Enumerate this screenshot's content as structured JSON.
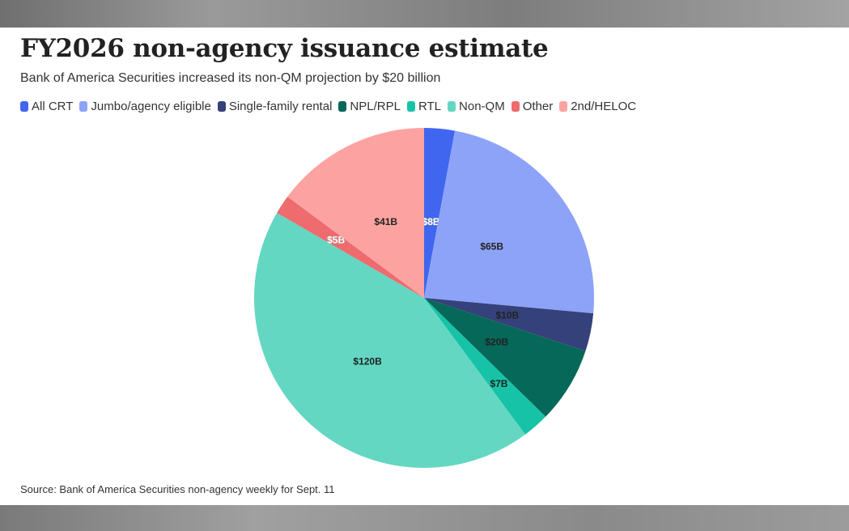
{
  "chart_data": {
    "type": "pie",
    "title": "FY2026 non-agency issuance estimate",
    "subtitle": "Bank of America Securities increased its non-QM projection by $20 billion",
    "source": "Source: Bank of America Securities non-agency weekly for Sept. 11",
    "legend_position": "top",
    "slices": [
      {
        "name": "All CRT",
        "value": 8,
        "label": "$8B",
        "color": "#4066ef"
      },
      {
        "name": "Jumbo/agency eligible",
        "value": 65,
        "label": "$65B",
        "color": "#8da3f8"
      },
      {
        "name": "Single-family rental",
        "value": 10,
        "label": "$10B",
        "color": "#35417a"
      },
      {
        "name": "NPL/RPL",
        "value": 20,
        "label": "$20B",
        "color": "#056859"
      },
      {
        "name": "RTL",
        "value": 7,
        "label": "$7B",
        "color": "#17c3a7"
      },
      {
        "name": "Non-QM",
        "value": 120,
        "label": "$120B",
        "color": "#63d7c2"
      },
      {
        "name": "Other",
        "value": 5,
        "label": "$5B",
        "color": "#ee6b6e"
      },
      {
        "name": "2nd/HELOC",
        "value": 41,
        "label": "$41B",
        "color": "#fca3a1"
      }
    ]
  }
}
